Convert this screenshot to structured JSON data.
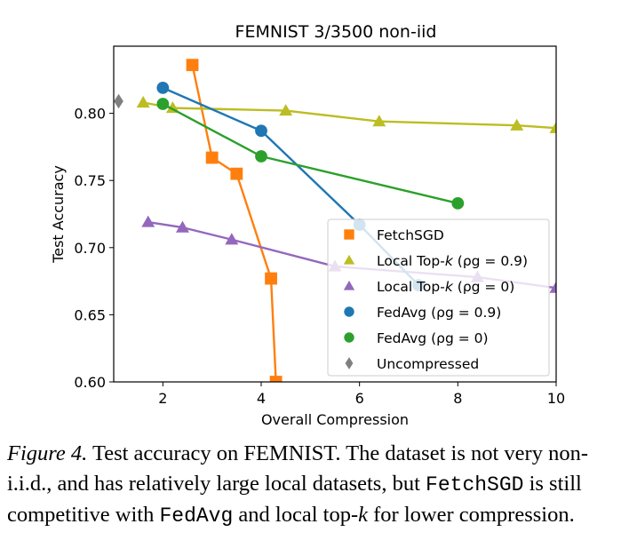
{
  "chart_data": {
    "type": "line",
    "title": "FEMNIST 3/3500 non-iid",
    "xlabel": "Overall Compression",
    "ylabel": "Test Accuracy",
    "xlim": [
      1,
      10
    ],
    "ylim": [
      0.6,
      0.85
    ],
    "xticks": [
      2,
      4,
      6,
      8,
      10
    ],
    "yticks": [
      0.6,
      0.65,
      0.7,
      0.75,
      0.8
    ],
    "xtick_labels": [
      "2",
      "4",
      "6",
      "8",
      "10"
    ],
    "ytick_labels": [
      "0.60",
      "0.65",
      "0.70",
      "0.75",
      "0.80"
    ],
    "grid": false,
    "legend_position": "lower-right",
    "series": [
      {
        "name": "FetchSGD",
        "marker": "square",
        "color": "#ff7f0e",
        "x": [
          2.6,
          3.0,
          3.5,
          4.2,
          4.3
        ],
        "y": [
          0.836,
          0.767,
          0.755,
          0.677,
          0.6
        ]
      },
      {
        "name": "Local Top-k (ρg = 0.9)",
        "marker": "triangle",
        "color": "#bcbd22",
        "x": [
          1.6,
          2.2,
          4.5,
          6.4,
          9.2,
          10.0
        ],
        "y": [
          0.808,
          0.804,
          0.802,
          0.794,
          0.791,
          0.789
        ]
      },
      {
        "name": "Local Top-k (ρg = 0)",
        "marker": "triangle",
        "color": "#9467bd",
        "x": [
          1.7,
          2.4,
          3.4,
          5.5,
          8.4,
          10.0
        ],
        "y": [
          0.719,
          0.715,
          0.706,
          0.686,
          0.678,
          0.67
        ]
      },
      {
        "name": "FedAvg (ρg = 0.9)",
        "marker": "circle",
        "color": "#1f77b4",
        "x": [
          2.0,
          4.0,
          6.0,
          7.2
        ],
        "y": [
          0.819,
          0.787,
          0.717,
          0.672
        ]
      },
      {
        "name": "FedAvg (ρg = 0)",
        "marker": "circle",
        "color": "#2ca02c",
        "x": [
          2.0,
          4.0,
          8.0
        ],
        "y": [
          0.807,
          0.768,
          0.733
        ]
      },
      {
        "name": "Uncompressed",
        "marker": "diamond",
        "color": "#7f7f7f",
        "x": [
          1.1
        ],
        "y": [
          0.809
        ]
      }
    ],
    "legend": [
      {
        "prefix": "FetchSGD",
        "mid": "",
        "suffix": "",
        "color": "#ff7f0e",
        "marker": "square"
      },
      {
        "prefix": "Local Top-",
        "mid": "k",
        "suffix": " (ρg = 0.9)",
        "color": "#bcbd22",
        "marker": "triangle"
      },
      {
        "prefix": "Local Top-",
        "mid": "k",
        "suffix": " (ρg = 0)",
        "color": "#9467bd",
        "marker": "triangle"
      },
      {
        "prefix": "FedAvg (ρg = 0.9)",
        "mid": "",
        "suffix": "",
        "color": "#1f77b4",
        "marker": "circle"
      },
      {
        "prefix": "FedAvg (ρg = 0)",
        "mid": "",
        "suffix": "",
        "color": "#2ca02c",
        "marker": "circle"
      },
      {
        "prefix": "Uncompressed",
        "mid": "",
        "suffix": "",
        "color": "#7f7f7f",
        "marker": "diamond"
      }
    ]
  },
  "caption": {
    "figure_label": "Figure 4.",
    "part1": " Test accuracy on FEMNIST. The dataset is not very non-i.i.d., and has relatively large local datasets, but ",
    "code1": "FetchSGD",
    "part2": " is still competitive with ",
    "code2": "FedAvg",
    "part3": " and local top-",
    "var_k": "k",
    "part4": " for lower compression."
  }
}
